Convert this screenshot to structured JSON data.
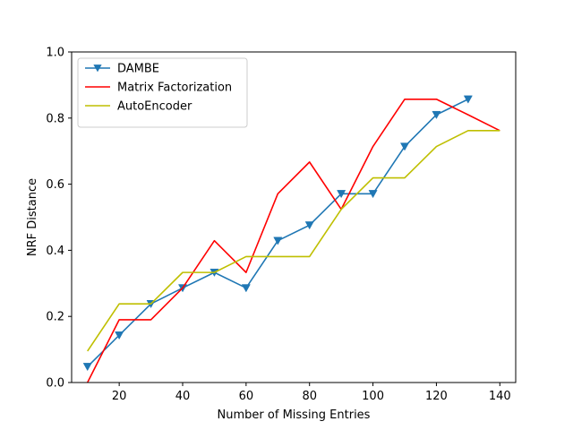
{
  "chart_data": {
    "type": "line",
    "title": "",
    "xlabel": "Number of Missing Entries",
    "ylabel": "NRF Distance",
    "xlim": [
      5,
      145
    ],
    "ylim": [
      0.0,
      1.0
    ],
    "xticks": [
      20,
      40,
      60,
      80,
      100,
      120,
      140
    ],
    "xtick_labels": [
      "20",
      "40",
      "60",
      "80",
      "100",
      "120",
      "140"
    ],
    "yticks": [
      0.0,
      0.2,
      0.4,
      0.6,
      0.8,
      1.0
    ],
    "ytick_labels": [
      "0.0",
      "0.2",
      "0.4",
      "0.6",
      "0.8",
      "1.0"
    ],
    "grid": false,
    "legend_position": "top-left",
    "series": [
      {
        "name": "DAMBE",
        "color": "#1f77b4",
        "marker": "triangle-down",
        "x": [
          10,
          20,
          30,
          40,
          50,
          60,
          70,
          80,
          90,
          100,
          110,
          120,
          130
        ],
        "y": [
          0.048,
          0.143,
          0.238,
          0.286,
          0.333,
          0.286,
          0.429,
          0.476,
          0.571,
          0.571,
          0.714,
          0.81,
          0.857
        ]
      },
      {
        "name": "Matrix Factorization",
        "color": "#ff0000",
        "marker": "none",
        "x": [
          10,
          20,
          30,
          40,
          50,
          60,
          70,
          80,
          90,
          100,
          110,
          120,
          130,
          140
        ],
        "y": [
          0.0,
          0.19,
          0.19,
          0.286,
          0.429,
          0.333,
          0.571,
          0.667,
          0.524,
          0.714,
          0.857,
          0.857,
          0.81,
          0.762
        ]
      },
      {
        "name": "AutoEncoder",
        "color": "#bfbf00",
        "marker": "none",
        "x": [
          10,
          20,
          30,
          40,
          50,
          60,
          70,
          80,
          90,
          100,
          110,
          120,
          130,
          140
        ],
        "y": [
          0.095,
          0.238,
          0.238,
          0.333,
          0.333,
          0.381,
          0.381,
          0.381,
          0.524,
          0.619,
          0.619,
          0.714,
          0.762,
          0.762
        ]
      }
    ]
  }
}
